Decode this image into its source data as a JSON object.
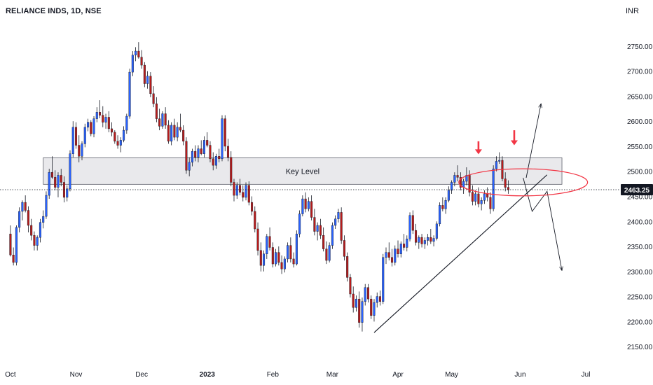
{
  "header": {
    "symbol_title": "RELIANCE INDS, 1D, NSE",
    "currency": "INR"
  },
  "colors": {
    "up": "#2962ff",
    "down": "#b71c1c",
    "zone_fill": "#e9e9ec",
    "zone_stroke": "#5d606b",
    "price_line": "#131722",
    "annotation_arrow": "#f23645",
    "circle": "#f23645",
    "drawing": "#131722"
  },
  "chart_data": {
    "type": "candlestick",
    "ylim": [
      2125,
      2775
    ],
    "y_ticks": [
      2150,
      2200,
      2250,
      2300,
      2350,
      2400,
      2450,
      2500,
      2550,
      2600,
      2650,
      2700,
      2750
    ],
    "y_tick_labels": [
      "2150.00",
      "2200.00",
      "2250.00",
      "2300.00",
      "2350.00",
      "2400.00",
      "2450.00",
      "2500.00",
      "2550.00",
      "2600.00",
      "2650.00",
      "2700.00",
      "2750.00"
    ],
    "x_ticks": [
      {
        "label": "Oct",
        "index": 0
      },
      {
        "label": "Nov",
        "index": 22
      },
      {
        "label": "Dec",
        "index": 44
      },
      {
        "label": "2023",
        "index": 66,
        "bold": true
      },
      {
        "label": "Feb",
        "index": 88
      },
      {
        "label": "Mar",
        "index": 108
      },
      {
        "label": "Apr",
        "index": 130
      },
      {
        "label": "May",
        "index": 148
      },
      {
        "label": "Jun",
        "index": 171
      },
      {
        "label": "Jul",
        "index": 193
      }
    ],
    "x_range": [
      -3.5,
      204.5
    ],
    "last_price": 2463.25,
    "last_price_label": "2463.25",
    "key_level": {
      "label": "Key Level",
      "low": 2474,
      "high": 2527,
      "start_index": 11,
      "end_index": 185
    },
    "trendline": {
      "x1": 122,
      "y1": 2178,
      "x2": 180,
      "y2": 2493
    },
    "projection_up": [
      {
        "x": 173,
        "y": 2487
      },
      {
        "x": 178,
        "y": 2635
      }
    ],
    "projection_down": [
      {
        "x": 172,
        "y": 2487
      },
      {
        "x": 175,
        "y": 2420
      },
      {
        "x": 180,
        "y": 2460
      },
      {
        "x": 185,
        "y": 2302
      }
    ],
    "circle": {
      "x": 172,
      "y": 2478,
      "radius_x": 9,
      "radius_y": 36
    },
    "down_arrows": [
      {
        "x": 157,
        "y_top": 2560,
        "y_tip": 2534
      },
      {
        "x": 169,
        "y_top": 2582,
        "y_tip": 2552
      }
    ],
    "candles": [
      [
        2375,
        2392,
        2330,
        2333
      ],
      [
        2333,
        2348,
        2312,
        2318
      ],
      [
        2318,
        2392,
        2312,
        2388
      ],
      [
        2388,
        2428,
        2378,
        2420
      ],
      [
        2420,
        2442,
        2402,
        2438
      ],
      [
        2438,
        2452,
        2418,
        2422
      ],
      [
        2422,
        2430,
        2378,
        2392
      ],
      [
        2392,
        2405,
        2362,
        2372
      ],
      [
        2372,
        2380,
        2342,
        2352
      ],
      [
        2352,
        2372,
        2342,
        2368
      ],
      [
        2368,
        2405,
        2358,
        2398
      ],
      [
        2398,
        2422,
        2386,
        2410
      ],
      [
        2410,
        2460,
        2405,
        2452
      ],
      [
        2452,
        2505,
        2445,
        2498
      ],
      [
        2498,
        2530,
        2485,
        2488
      ],
      [
        2488,
        2502,
        2462,
        2468
      ],
      [
        2468,
        2498,
        2448,
        2492
      ],
      [
        2492,
        2505,
        2470,
        2478
      ],
      [
        2478,
        2490,
        2438,
        2448
      ],
      [
        2448,
        2472,
        2440,
        2465
      ],
      [
        2465,
        2542,
        2460,
        2535
      ],
      [
        2535,
        2600,
        2528,
        2588
      ],
      [
        2588,
        2598,
        2545,
        2552
      ],
      [
        2552,
        2572,
        2518,
        2530
      ],
      [
        2530,
        2560,
        2522,
        2555
      ],
      [
        2555,
        2595,
        2548,
        2588
      ],
      [
        2588,
        2605,
        2580,
        2598
      ],
      [
        2598,
        2602,
        2570,
        2575
      ],
      [
        2575,
        2610,
        2568,
        2605
      ],
      [
        2605,
        2628,
        2598,
        2618
      ],
      [
        2618,
        2642,
        2606,
        2612
      ],
      [
        2612,
        2630,
        2588,
        2598
      ],
      [
        2598,
        2615,
        2585,
        2608
      ],
      [
        2608,
        2620,
        2578,
        2585
      ],
      [
        2585,
        2598,
        2570,
        2578
      ],
      [
        2578,
        2582,
        2555,
        2560
      ],
      [
        2560,
        2572,
        2545,
        2552
      ],
      [
        2552,
        2568,
        2538,
        2562
      ],
      [
        2562,
        2590,
        2558,
        2582
      ],
      [
        2582,
        2615,
        2575,
        2610
      ],
      [
        2610,
        2705,
        2605,
        2698
      ],
      [
        2698,
        2740,
        2690,
        2732
      ],
      [
        2732,
        2748,
        2720,
        2740
      ],
      [
        2740,
        2758,
        2725,
        2728
      ],
      [
        2728,
        2742,
        2705,
        2712
      ],
      [
        2712,
        2718,
        2668,
        2675
      ],
      [
        2675,
        2700,
        2665,
        2690
      ],
      [
        2690,
        2698,
        2648,
        2655
      ],
      [
        2655,
        2670,
        2628,
        2635
      ],
      [
        2635,
        2648,
        2598,
        2605
      ],
      [
        2605,
        2625,
        2582,
        2590
      ],
      [
        2590,
        2620,
        2585,
        2615
      ],
      [
        2615,
        2628,
        2585,
        2592
      ],
      [
        2592,
        2602,
        2555,
        2560
      ],
      [
        2560,
        2598,
        2552,
        2592
      ],
      [
        2592,
        2605,
        2562,
        2568
      ],
      [
        2568,
        2598,
        2560,
        2588
      ],
      [
        2588,
        2615,
        2578,
        2582
      ],
      [
        2582,
        2592,
        2552,
        2560
      ],
      [
        2560,
        2568,
        2495,
        2502
      ],
      [
        2502,
        2528,
        2490,
        2518
      ],
      [
        2518,
        2545,
        2510,
        2540
      ],
      [
        2540,
        2552,
        2520,
        2528
      ],
      [
        2528,
        2552,
        2518,
        2545
      ],
      [
        2545,
        2562,
        2532,
        2535
      ],
      [
        2535,
        2570,
        2528,
        2562
      ],
      [
        2562,
        2578,
        2548,
        2552
      ],
      [
        2552,
        2560,
        2518,
        2525
      ],
      [
        2525,
        2538,
        2502,
        2512
      ],
      [
        2512,
        2535,
        2505,
        2530
      ],
      [
        2530,
        2545,
        2518,
        2525
      ],
      [
        2525,
        2612,
        2520,
        2605
      ],
      [
        2605,
        2612,
        2540,
        2550
      ],
      [
        2550,
        2565,
        2520,
        2528
      ],
      [
        2528,
        2540,
        2470,
        2478
      ],
      [
        2478,
        2485,
        2440,
        2452
      ],
      [
        2452,
        2478,
        2445,
        2472
      ],
      [
        2472,
        2485,
        2452,
        2458
      ],
      [
        2458,
        2472,
        2440,
        2448
      ],
      [
        2448,
        2478,
        2442,
        2472
      ],
      [
        2472,
        2480,
        2432,
        2438
      ],
      [
        2438,
        2450,
        2412,
        2420
      ],
      [
        2420,
        2430,
        2378,
        2385
      ],
      [
        2385,
        2398,
        2332,
        2342
      ],
      [
        2342,
        2358,
        2300,
        2312
      ],
      [
        2312,
        2342,
        2300,
        2335
      ],
      [
        2335,
        2375,
        2325,
        2370
      ],
      [
        2370,
        2388,
        2342,
        2348
      ],
      [
        2348,
        2358,
        2308,
        2315
      ],
      [
        2315,
        2345,
        2310,
        2338
      ],
      [
        2338,
        2350,
        2312,
        2318
      ],
      [
        2318,
        2332,
        2295,
        2305
      ],
      [
        2305,
        2330,
        2298,
        2325
      ],
      [
        2325,
        2358,
        2318,
        2352
      ],
      [
        2352,
        2368,
        2318,
        2325
      ],
      [
        2325,
        2338,
        2308,
        2315
      ],
      [
        2315,
        2382,
        2312,
        2375
      ],
      [
        2375,
        2422,
        2368,
        2415
      ],
      [
        2415,
        2452,
        2410,
        2445
      ],
      [
        2445,
        2458,
        2418,
        2425
      ],
      [
        2425,
        2448,
        2420,
        2440
      ],
      [
        2440,
        2452,
        2402,
        2408
      ],
      [
        2408,
        2425,
        2372,
        2380
      ],
      [
        2380,
        2398,
        2362,
        2392
      ],
      [
        2392,
        2405,
        2365,
        2372
      ],
      [
        2372,
        2388,
        2340,
        2345
      ],
      [
        2345,
        2360,
        2315,
        2322
      ],
      [
        2322,
        2358,
        2318,
        2352
      ],
      [
        2352,
        2398,
        2345,
        2392
      ],
      [
        2392,
        2412,
        2385,
        2405
      ],
      [
        2405,
        2425,
        2398,
        2418
      ],
      [
        2418,
        2428,
        2355,
        2362
      ],
      [
        2362,
        2372,
        2322,
        2330
      ],
      [
        2330,
        2338,
        2280,
        2288
      ],
      [
        2288,
        2295,
        2248,
        2255
      ],
      [
        2255,
        2270,
        2218,
        2228
      ],
      [
        2228,
        2252,
        2220,
        2245
      ],
      [
        2245,
        2260,
        2188,
        2198
      ],
      [
        2198,
        2248,
        2180,
        2240
      ],
      [
        2240,
        2275,
        2232,
        2268
      ],
      [
        2268,
        2275,
        2238,
        2245
      ],
      [
        2245,
        2252,
        2205,
        2212
      ],
      [
        2212,
        2245,
        2200,
        2238
      ],
      [
        2238,
        2258,
        2228,
        2250
      ],
      [
        2250,
        2262,
        2232,
        2240
      ],
      [
        2240,
        2335,
        2235,
        2328
      ],
      [
        2328,
        2348,
        2315,
        2338
      ],
      [
        2338,
        2358,
        2322,
        2328
      ],
      [
        2328,
        2345,
        2310,
        2318
      ],
      [
        2318,
        2352,
        2312,
        2345
      ],
      [
        2345,
        2362,
        2328,
        2335
      ],
      [
        2335,
        2360,
        2328,
        2355
      ],
      [
        2355,
        2375,
        2342,
        2348
      ],
      [
        2348,
        2372,
        2340,
        2365
      ],
      [
        2365,
        2418,
        2360,
        2412
      ],
      [
        2412,
        2422,
        2375,
        2382
      ],
      [
        2382,
        2395,
        2352,
        2358
      ],
      [
        2358,
        2372,
        2345,
        2368
      ],
      [
        2368,
        2375,
        2348,
        2355
      ],
      [
        2355,
        2368,
        2345,
        2362
      ],
      [
        2362,
        2375,
        2352,
        2368
      ],
      [
        2368,
        2385,
        2355,
        2360
      ],
      [
        2360,
        2372,
        2350,
        2366
      ],
      [
        2366,
        2400,
        2362,
        2395
      ],
      [
        2395,
        2438,
        2390,
        2432
      ],
      [
        2432,
        2448,
        2420,
        2425
      ],
      [
        2425,
        2448,
        2415,
        2442
      ],
      [
        2442,
        2470,
        2438,
        2462
      ],
      [
        2462,
        2482,
        2455,
        2478
      ],
      [
        2478,
        2498,
        2470,
        2492
      ],
      [
        2492,
        2512,
        2480,
        2488
      ],
      [
        2488,
        2498,
        2462,
        2468
      ],
      [
        2468,
        2485,
        2455,
        2480
      ],
      [
        2480,
        2508,
        2472,
        2492
      ],
      [
        2492,
        2502,
        2450,
        2458
      ],
      [
        2458,
        2472,
        2432,
        2440
      ],
      [
        2440,
        2462,
        2432,
        2455
      ],
      [
        2455,
        2468,
        2428,
        2435
      ],
      [
        2435,
        2448,
        2422,
        2442
      ],
      [
        2442,
        2462,
        2435,
        2455
      ],
      [
        2455,
        2468,
        2440,
        2448
      ],
      [
        2448,
        2458,
        2415,
        2425
      ],
      [
        2425,
        2512,
        2420,
        2505
      ],
      [
        2505,
        2530,
        2500,
        2520
      ],
      [
        2520,
        2538,
        2515,
        2522
      ],
      [
        2522,
        2530,
        2480,
        2485
      ],
      [
        2485,
        2498,
        2460,
        2468
      ],
      [
        2468,
        2482,
        2455,
        2463
      ]
    ]
  }
}
